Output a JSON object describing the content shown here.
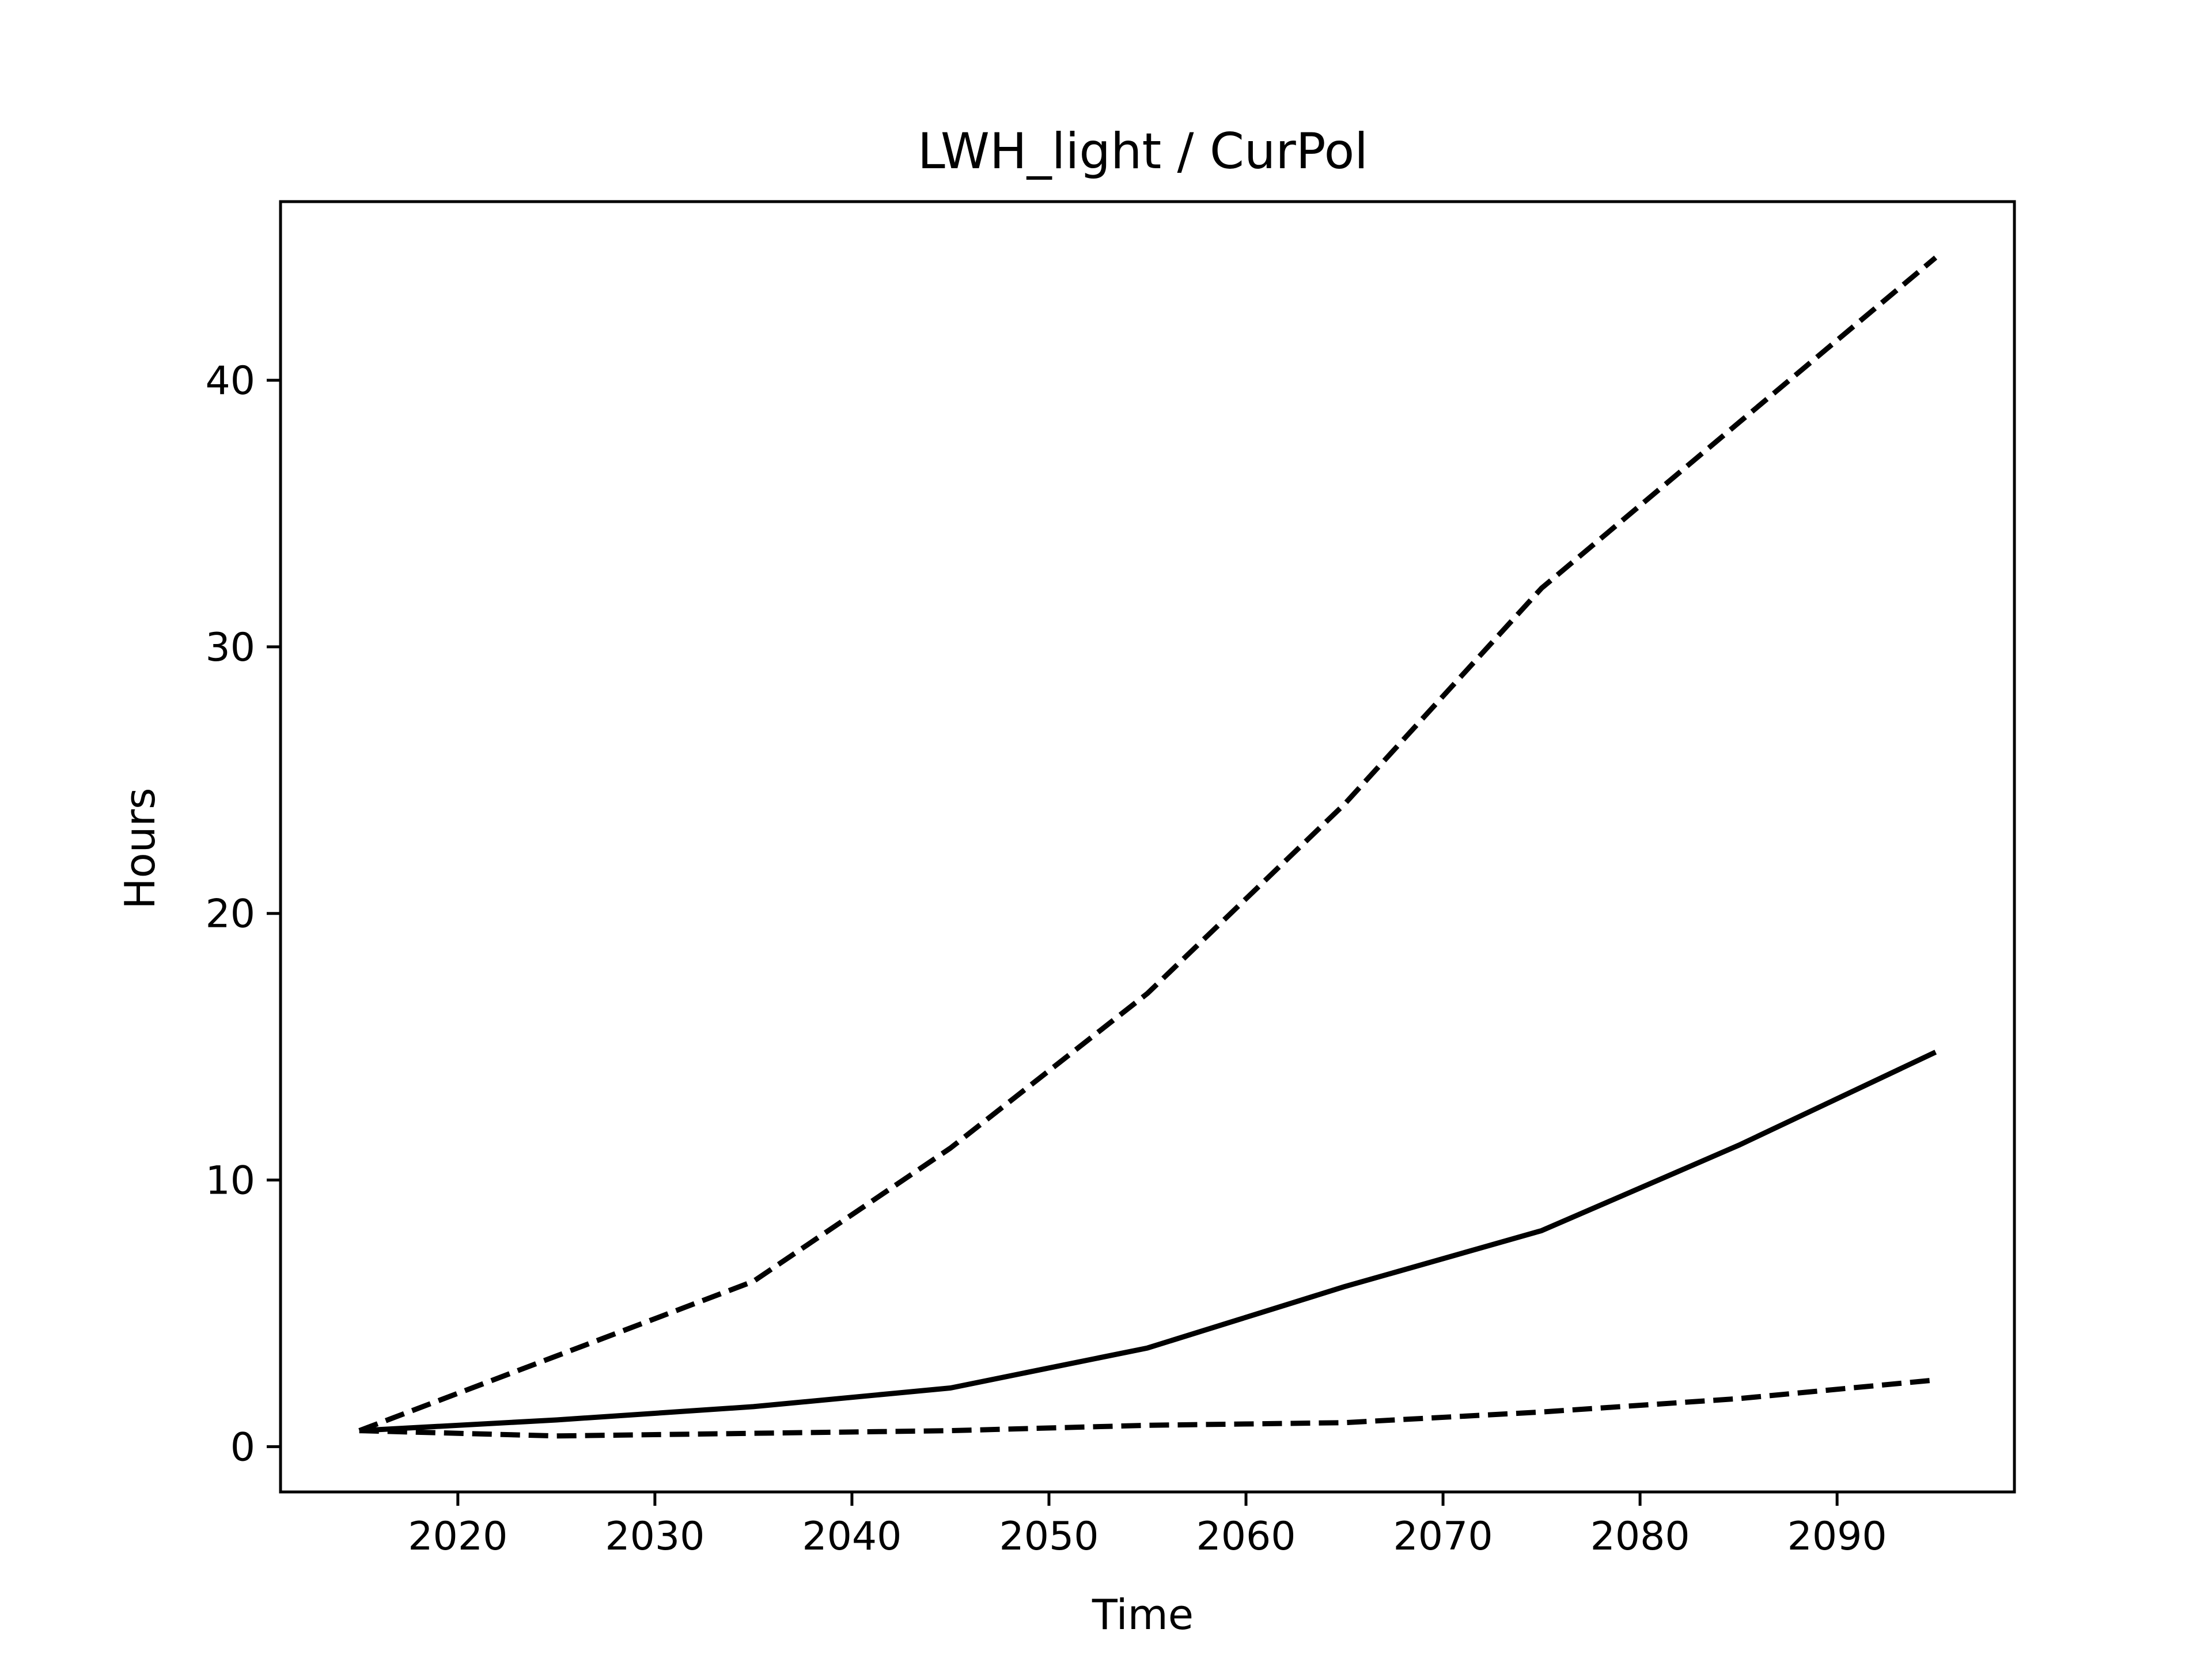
{
  "chart_data": {
    "type": "line",
    "title": "LWH_light / CurPol",
    "xlabel": "Time",
    "ylabel": "Hours",
    "xlim": [
      2011,
      2099
    ],
    "ylim": [
      -1.7,
      46.7
    ],
    "xticks": [
      2020,
      2030,
      2040,
      2050,
      2060,
      2070,
      2080,
      2090
    ],
    "yticks": [
      0,
      10,
      20,
      30,
      40
    ],
    "grid": false,
    "legend": "none",
    "x": [
      2015,
      2025,
      2035,
      2045,
      2055,
      2065,
      2075,
      2085,
      2095
    ],
    "series": [
      {
        "style": "dashed",
        "color": "#000000",
        "values": [
          0.6,
          3.4,
          6.2,
          11.2,
          17.0,
          24.1,
          32.2,
          38.4,
          44.6
        ]
      },
      {
        "style": "solid",
        "color": "#000000",
        "values": [
          0.6,
          1.0,
          1.5,
          2.2,
          3.7,
          6.0,
          8.1,
          11.3,
          14.8
        ]
      },
      {
        "style": "dashed",
        "color": "#000000",
        "values": [
          0.6,
          0.4,
          0.5,
          0.6,
          0.8,
          0.9,
          1.3,
          1.8,
          2.5
        ]
      }
    ]
  }
}
